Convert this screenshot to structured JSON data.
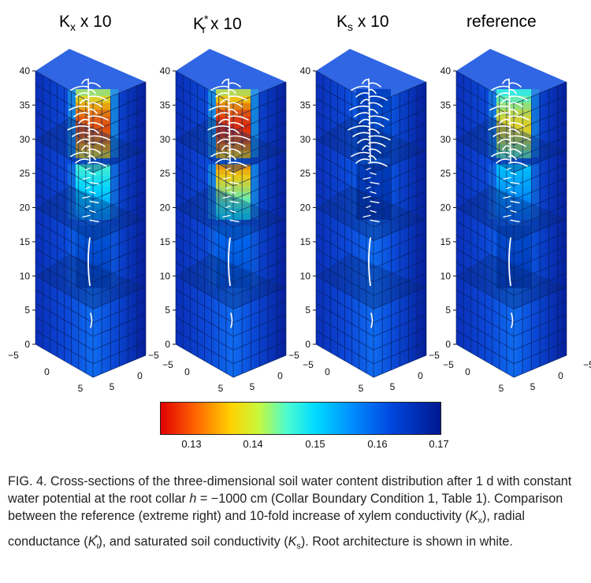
{
  "panels": [
    {
      "id": "kx",
      "base": "K",
      "sub": "x",
      "sup": "",
      "suffix": " x 10",
      "hotTop": 0.95,
      "hotBottom": 0.55
    },
    {
      "id": "kr",
      "base": "K",
      "sub": "r",
      "sup": "*",
      "suffix": " x 10",
      "hotTop": 1.0,
      "hotBottom": 0.85
    },
    {
      "id": "ks",
      "base": "K",
      "sub": "s",
      "sup": "",
      "suffix": " x 10",
      "hotTop": 0.1,
      "hotBottom": 0.05
    },
    {
      "id": "ref",
      "base": "reference",
      "sub": "",
      "sup": "",
      "suffix": "",
      "hotTop": 0.75,
      "hotBottom": 0.4
    }
  ],
  "axes": {
    "z_ticks": [
      "0",
      "5",
      "10",
      "15",
      "20",
      "25",
      "30",
      "35",
      "40"
    ],
    "x_ticks": [
      "−5",
      "0",
      "5"
    ],
    "y_ticks": [
      "5",
      "0",
      "−5"
    ]
  },
  "colorbar": {
    "ticks": [
      "0.13",
      "0.14",
      "0.15",
      "0.16",
      "0.17"
    ],
    "colors": {
      "low": "#e10000",
      "mid": "#00ddff",
      "high": "#001890"
    }
  },
  "caption": {
    "fig_label": "FIG. 4.",
    "part1": "Cross-sections of the three-dimensional soil water content distribution after 1 d with constant water potential at the root collar ",
    "h_var": "h",
    "part2": " = −1000 cm (Collar Boundary Condition 1, Table 1). Comparison between the reference (extreme right) and 10-fold increase of xylem conductivity (",
    "kx_base": "K",
    "kx_sub": "x",
    "part3": "), radial conductance (",
    "kr_base": "K",
    "kr_sub": "r",
    "kr_sup": "*",
    "part4": "), and saturated soil conductivity (",
    "ks_base": "K",
    "ks_sub": "s",
    "part5": "). Root architecture is shown in white."
  }
}
